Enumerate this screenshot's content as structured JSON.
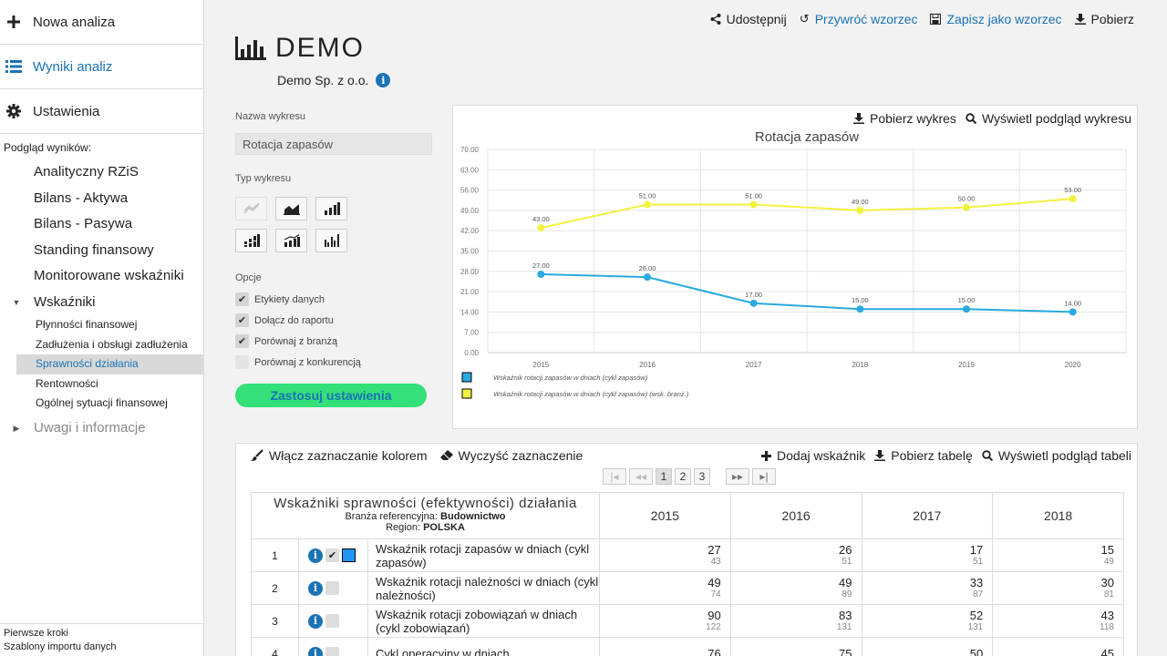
{
  "sidebar": {
    "main": [
      {
        "label": "Nowa analiza",
        "icon": "plus-icon"
      },
      {
        "label": "Wyniki analiz",
        "icon": "list-icon"
      },
      {
        "label": "Ustawienia",
        "icon": "gear-icon"
      }
    ],
    "caption": "Podgląd wyników:",
    "items": [
      "Analityczny RZiS",
      "Bilans - Aktywa",
      "Bilans - Pasywa",
      "Standing finansowy",
      "Monitorowane wskaźniki"
    ],
    "group": "Wskaźniki",
    "subitems": [
      "Płynności finansowej",
      "Zadłużenia i obsługi zadłużenia",
      "Sprawności działania",
      "Rentowności",
      "Ogólnej sytuacji finansowej"
    ],
    "group2": "Uwagi i informacje",
    "footer": [
      "Pierwsze kroki",
      "Szablony importu danych"
    ]
  },
  "top_actions": {
    "share": "Udostępnij",
    "restore": "Przywróć wzorzec",
    "save_template": "Zapisz jako wzorzec",
    "download": "Pobierz"
  },
  "page": {
    "title": "DEMO",
    "company": "Demo Sp. z o.o."
  },
  "settings": {
    "chart_name_label": "Nazwa wykresu",
    "chart_name_value": "Rotacja zapasów",
    "chart_type_label": "Typ wykresu",
    "options_label": "Opcje",
    "options": [
      {
        "label": "Etykiety danych",
        "checked": true
      },
      {
        "label": "Dołącz do raportu",
        "checked": true
      },
      {
        "label": "Porównaj z branżą",
        "checked": true
      },
      {
        "label": "Porównaj z konkurencją",
        "checked": false
      }
    ],
    "apply": "Zastosuj ustawienia"
  },
  "chart_actions": {
    "download": "Pobierz wykres",
    "preview": "Wyświetl podgląd wykresu"
  },
  "chart_data": {
    "type": "line",
    "title": "Rotacja zapasów",
    "categories": [
      "2015",
      "2016",
      "2017",
      "2018",
      "2019",
      "2020"
    ],
    "ylim": [
      0,
      70
    ],
    "yticks": [
      "0.00",
      "7.00",
      "14.00",
      "21.00",
      "28.00",
      "35.00",
      "42.00",
      "49.00",
      "56.00",
      "63.00",
      "70.00"
    ],
    "grid": true,
    "legend_position": "bottom-left",
    "series": [
      {
        "name": "Wskaźnik rotacji zapasów w dniach (cykl zapasów)",
        "color": "#29a9e0",
        "values": [
          27,
          26,
          17,
          15,
          15,
          14
        ],
        "labels": [
          "27.00",
          "26.00",
          "17.00",
          "15.00",
          "15.00",
          "14.00"
        ]
      },
      {
        "name": "Wskaźnik rotacji zapasów w dniach (cykl zapasów) (wsk. branż.)",
        "color": "#f2f240",
        "values": [
          43,
          51,
          51,
          49,
          50,
          53
        ],
        "labels": [
          "43.00",
          "51.00",
          "51.00",
          "49.00",
          "50.00",
          "53.00"
        ]
      }
    ]
  },
  "table_tools": {
    "color_mark": "Włącz zaznaczanie kolorem",
    "clear_mark": "Wyczyść zaznaczenie",
    "add": "Dodaj wskaźnik",
    "download": "Pobierz tabelę",
    "preview": "Wyświetl podgląd tabeli"
  },
  "pager": {
    "first": "|◂",
    "prev": "◂◂",
    "pages": [
      "1",
      "2",
      "3"
    ],
    "next": "▸▸",
    "last": "▸|"
  },
  "table": {
    "title": "Wskaźniki sprawności (efektywności) działania",
    "branch_label": "Branża referencyjna:",
    "branch_value": "Budownictwo",
    "region_label": "Region:",
    "region_value": "POLSKA",
    "years": [
      "2015",
      "2016",
      "2017",
      "2018"
    ],
    "rows": [
      {
        "no": "1",
        "name": "Wskaźnik rotacji zapasów w dniach (cykl zapasów)",
        "checked": true,
        "values": [
          [
            "27",
            "43"
          ],
          [
            "26",
            "51"
          ],
          [
            "17",
            "51"
          ],
          [
            "15",
            "49"
          ]
        ]
      },
      {
        "no": "2",
        "name": "Wskaźnik rotacji należności w dniach (cykl należności)",
        "checked": false,
        "values": [
          [
            "49",
            "74"
          ],
          [
            "49",
            "89"
          ],
          [
            "33",
            "87"
          ],
          [
            "30",
            "81"
          ]
        ]
      },
      {
        "no": "3",
        "name": "Wskaźnik rotacji zobowiązań w dniach (cykl zobowiązań)",
        "checked": false,
        "values": [
          [
            "90",
            "122"
          ],
          [
            "83",
            "131"
          ],
          [
            "52",
            "131"
          ],
          [
            "43",
            "118"
          ]
        ]
      },
      {
        "no": "4",
        "name": "Cykl operacyjny w dniach",
        "checked": false,
        "values": [
          [
            "76",
            ""
          ],
          [
            "75",
            ""
          ],
          [
            "50",
            ""
          ],
          [
            "45",
            ""
          ]
        ]
      }
    ]
  }
}
